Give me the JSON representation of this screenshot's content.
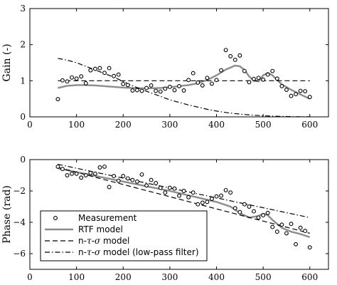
{
  "chart_data": [
    {
      "type": "scatter+line",
      "title": "",
      "xlabel": "",
      "ylabel": "Gain (-)",
      "xlim": [
        0,
        640
      ],
      "ylim": [
        0,
        3
      ],
      "x_ticks": [
        0,
        100,
        200,
        300,
        400,
        500,
        600
      ],
      "y_ticks": [
        0,
        1,
        2,
        3
      ],
      "grid": false,
      "series": [
        {
          "name": "Measurement",
          "style": "markers",
          "x": [
            60,
            70,
            80,
            90,
            100,
            110,
            120,
            130,
            140,
            150,
            160,
            170,
            180,
            190,
            200,
            210,
            220,
            230,
            240,
            250,
            260,
            270,
            280,
            290,
            300,
            310,
            320,
            330,
            340,
            350,
            360,
            370,
            380,
            390,
            400,
            410,
            420,
            430,
            440,
            450,
            460,
            470,
            480,
            490,
            500,
            510,
            520,
            530,
            540,
            550,
            560,
            570,
            580,
            590,
            600
          ],
          "y": [
            0.49,
            1.01,
            0.98,
            1.09,
            1.06,
            1.12,
            0.93,
            1.29,
            1.33,
            1.35,
            1.22,
            1.35,
            1.13,
            1.17,
            0.91,
            0.88,
            0.73,
            0.74,
            0.72,
            0.8,
            0.87,
            0.72,
            0.7,
            0.78,
            0.83,
            0.74,
            0.85,
            0.73,
            1.02,
            1.21,
            0.95,
            0.87,
            1.08,
            0.92,
            1.02,
            1.29,
            1.85,
            1.68,
            1.58,
            1.7,
            1.27,
            0.96,
            1.05,
            1.08,
            1.03,
            1.17,
            1.27,
            1.06,
            0.85,
            0.75,
            0.58,
            0.63,
            0.72,
            0.71,
            0.55
          ]
        },
        {
          "name": "RTF model",
          "style": "solid-gray",
          "x": [
            60,
            80,
            100,
            120,
            140,
            160,
            180,
            200,
            220,
            240,
            260,
            280,
            300,
            320,
            340,
            360,
            380,
            400,
            420,
            440,
            450,
            460,
            470,
            480,
            490,
            500,
            510,
            520,
            530,
            540,
            560,
            580,
            600
          ],
          "y": [
            0.8,
            0.86,
            0.88,
            0.88,
            0.87,
            0.85,
            0.83,
            0.81,
            0.8,
            0.79,
            0.79,
            0.8,
            0.82,
            0.85,
            0.88,
            0.93,
            1.02,
            1.15,
            1.31,
            1.42,
            1.4,
            1.3,
            1.12,
            1.0,
            0.98,
            1.15,
            1.22,
            1.15,
            1.02,
            0.9,
            0.75,
            0.62,
            0.5
          ]
        },
        {
          "name": "n-τ-σ model",
          "style": "dashed",
          "x": [
            60,
            600
          ],
          "y": [
            1.0,
            1.0
          ]
        },
        {
          "name": "n-τ-σ model (low-pass filter)",
          "style": "dash-dot",
          "x": [
            60,
            80,
            100,
            120,
            140,
            160,
            180,
            200,
            220,
            240,
            260,
            280,
            300,
            320,
            340,
            360,
            380,
            400,
            420,
            440,
            460,
            480,
            500,
            520,
            540,
            560,
            580,
            600
          ],
          "y": [
            1.62,
            1.57,
            1.5,
            1.4,
            1.3,
            1.2,
            1.1,
            0.98,
            0.86,
            0.76,
            0.66,
            0.57,
            0.47,
            0.4,
            0.33,
            0.27,
            0.21,
            0.16,
            0.12,
            0.09,
            0.065,
            0.045,
            0.03,
            0.02,
            0.012,
            0.007,
            0.004,
            0.002
          ]
        }
      ]
    },
    {
      "type": "scatter+line",
      "title": "",
      "xlabel": "",
      "ylabel": "Phase (rad)",
      "xlim": [
        0,
        640
      ],
      "ylim": [
        -7,
        0
      ],
      "x_ticks": [
        0,
        100,
        200,
        300,
        400,
        500,
        600
      ],
      "y_ticks": [
        0,
        -2,
        -4,
        -6
      ],
      "grid": false,
      "legend_placement": "lower-left",
      "series": [
        {
          "name": "Measurement",
          "style": "markers",
          "x": [
            60,
            70,
            80,
            90,
            100,
            110,
            120,
            130,
            140,
            150,
            160,
            170,
            180,
            190,
            200,
            210,
            220,
            230,
            240,
            250,
            260,
            270,
            280,
            290,
            300,
            310,
            320,
            330,
            340,
            350,
            360,
            370,
            380,
            390,
            400,
            410,
            420,
            430,
            440,
            450,
            460,
            470,
            480,
            490,
            500,
            510,
            520,
            530,
            540,
            550,
            560,
            570,
            580,
            590,
            600
          ],
          "y": [
            -0.45,
            -0.6,
            -1.0,
            -0.9,
            -0.9,
            -1.15,
            -1.0,
            -0.85,
            -0.9,
            -0.5,
            -0.45,
            -1.75,
            -1.05,
            -1.35,
            -1.05,
            -1.2,
            -1.3,
            -1.4,
            -0.95,
            -1.65,
            -1.3,
            -1.5,
            -1.8,
            -2.1,
            -1.8,
            -1.85,
            -2.3,
            -2.0,
            -2.4,
            -2.1,
            -2.85,
            -2.75,
            -2.7,
            -2.5,
            -2.35,
            -2.3,
            -1.95,
            -2.1,
            -3.1,
            -3.35,
            -2.85,
            -3.0,
            -3.3,
            -3.7,
            -3.55,
            -3.4,
            -4.3,
            -4.6,
            -4.15,
            -4.7,
            -4.1,
            -5.4,
            -4.35,
            -4.55,
            -5.6
          ]
        },
        {
          "name": "RTF model",
          "style": "solid-gray",
          "x": [
            60,
            100,
            150,
            200,
            250,
            300,
            350,
            400,
            430,
            450,
            470,
            490,
            500,
            510,
            520,
            530,
            540,
            560,
            580,
            600
          ],
          "y": [
            -0.55,
            -0.8,
            -1.1,
            -1.4,
            -1.7,
            -2.0,
            -2.35,
            -2.7,
            -3.0,
            -3.4,
            -3.7,
            -3.6,
            -3.45,
            -3.55,
            -3.85,
            -4.1,
            -4.35,
            -4.6,
            -4.75,
            -4.95
          ]
        },
        {
          "name": "n-τ-σ model",
          "style": "dashed",
          "x": [
            60,
            600
          ],
          "y": [
            -0.5,
            -4.7
          ]
        },
        {
          "name": "n-τ-σ model (low-pass filter)",
          "style": "dash-dot",
          "x": [
            60,
            600
          ],
          "y": [
            -0.3,
            -3.7
          ]
        }
      ]
    }
  ],
  "legend": {
    "entries": [
      {
        "key": "measurement",
        "label": "Measurement"
      },
      {
        "key": "rtf",
        "label": "RTF model"
      },
      {
        "key": "nts",
        "prefix": "n-",
        "tau": "τ",
        "mid": "-",
        "sigma": "σ",
        "suffix": " model"
      },
      {
        "key": "ntslp",
        "prefix": "n-",
        "tau": "τ",
        "mid": "-",
        "sigma": "σ",
        "suffix": " model (low-pass filter)"
      }
    ]
  },
  "colors": {
    "axis": "#000000",
    "rtf": "#8c8c8c",
    "marker_stroke": "#000000",
    "marker_fill": "#ffffff",
    "background": "#ffffff"
  }
}
